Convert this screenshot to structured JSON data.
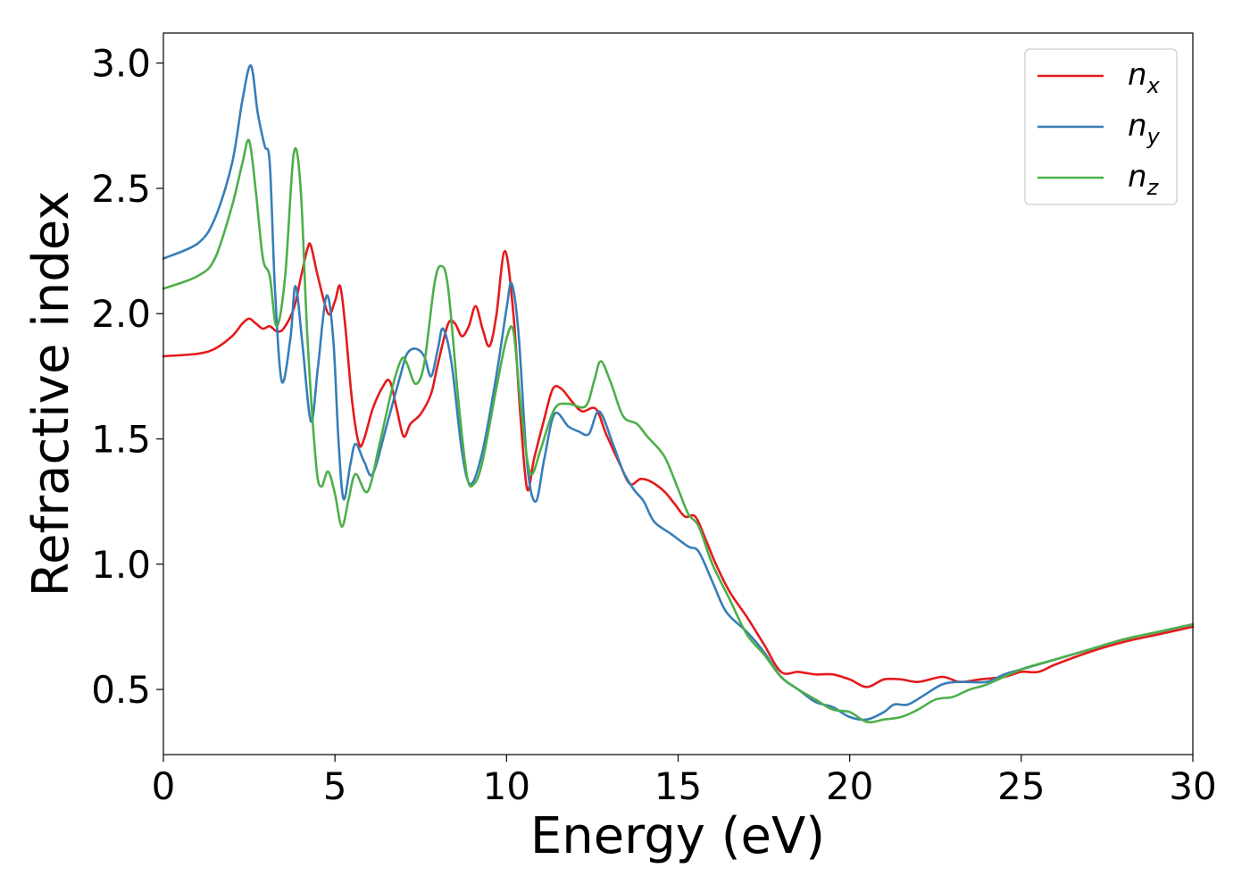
{
  "chart_data": {
    "type": "line",
    "title": "",
    "xlabel": "Energy (eV)",
    "ylabel": "Refractive index",
    "xlim": [
      0,
      30
    ],
    "ylim": [
      0.24,
      3.12
    ],
    "xticks": [
      "0",
      "5",
      "10",
      "15",
      "20",
      "25",
      "30"
    ],
    "yticks": [
      "0.5",
      "1.0",
      "1.5",
      "2.0",
      "2.5",
      "3.0"
    ],
    "grid": false,
    "legend_position": "top-right",
    "series": [
      {
        "name": "n_x",
        "legend_base": "n",
        "legend_sub": "x",
        "color": "#e41a1c",
        "points": [
          [
            0,
            1.83
          ],
          [
            1,
            1.84
          ],
          [
            1.5,
            1.86
          ],
          [
            2,
            1.91
          ],
          [
            2.3,
            1.96
          ],
          [
            2.5,
            1.98
          ],
          [
            2.7,
            1.96
          ],
          [
            2.9,
            1.94
          ],
          [
            3.1,
            1.95
          ],
          [
            3.3,
            1.93
          ],
          [
            3.5,
            1.94
          ],
          [
            3.8,
            2.02
          ],
          [
            4.0,
            2.14
          ],
          [
            4.2,
            2.26
          ],
          [
            4.3,
            2.27
          ],
          [
            4.5,
            2.15
          ],
          [
            4.8,
            2.0
          ],
          [
            5.0,
            2.05
          ],
          [
            5.15,
            2.11
          ],
          [
            5.3,
            1.95
          ],
          [
            5.5,
            1.65
          ],
          [
            5.7,
            1.48
          ],
          [
            5.85,
            1.5
          ],
          [
            6.1,
            1.62
          ],
          [
            6.4,
            1.71
          ],
          [
            6.6,
            1.73
          ],
          [
            6.8,
            1.62
          ],
          [
            7.0,
            1.51
          ],
          [
            7.2,
            1.56
          ],
          [
            7.5,
            1.6
          ],
          [
            7.8,
            1.68
          ],
          [
            8.0,
            1.8
          ],
          [
            8.3,
            1.96
          ],
          [
            8.5,
            1.96
          ],
          [
            8.7,
            1.91
          ],
          [
            8.9,
            1.95
          ],
          [
            9.1,
            2.03
          ],
          [
            9.3,
            1.94
          ],
          [
            9.5,
            1.87
          ],
          [
            9.7,
            1.99
          ],
          [
            9.95,
            2.25
          ],
          [
            10.2,
            2.0
          ],
          [
            10.4,
            1.6
          ],
          [
            10.6,
            1.3
          ],
          [
            10.8,
            1.42
          ],
          [
            11.1,
            1.58
          ],
          [
            11.35,
            1.7
          ],
          [
            11.6,
            1.7
          ],
          [
            11.9,
            1.65
          ],
          [
            12.2,
            1.61
          ],
          [
            12.6,
            1.62
          ],
          [
            12.9,
            1.52
          ],
          [
            13.3,
            1.4
          ],
          [
            13.6,
            1.32
          ],
          [
            13.9,
            1.34
          ],
          [
            14.2,
            1.33
          ],
          [
            14.6,
            1.29
          ],
          [
            14.9,
            1.24
          ],
          [
            15.2,
            1.19
          ],
          [
            15.5,
            1.19
          ],
          [
            15.8,
            1.1
          ],
          [
            16.1,
            1.0
          ],
          [
            16.5,
            0.89
          ],
          [
            17.0,
            0.79
          ],
          [
            17.5,
            0.68
          ],
          [
            18.0,
            0.57
          ],
          [
            18.5,
            0.57
          ],
          [
            19.0,
            0.56
          ],
          [
            19.5,
            0.56
          ],
          [
            20.0,
            0.54
          ],
          [
            20.5,
            0.51
          ],
          [
            21.0,
            0.54
          ],
          [
            21.5,
            0.54
          ],
          [
            22.0,
            0.53
          ],
          [
            22.7,
            0.55
          ],
          [
            23.2,
            0.53
          ],
          [
            23.8,
            0.54
          ],
          [
            24.5,
            0.55
          ],
          [
            25.0,
            0.57
          ],
          [
            25.5,
            0.57
          ],
          [
            26.0,
            0.6
          ],
          [
            27.0,
            0.65
          ],
          [
            28.0,
            0.69
          ],
          [
            29.0,
            0.72
          ],
          [
            30.0,
            0.75
          ]
        ]
      },
      {
        "name": "n_y",
        "legend_base": "n",
        "legend_sub": "y",
        "color": "#377eb8",
        "points": [
          [
            0,
            2.22
          ],
          [
            1,
            2.28
          ],
          [
            1.5,
            2.38
          ],
          [
            2.0,
            2.6
          ],
          [
            2.3,
            2.85
          ],
          [
            2.55,
            2.99
          ],
          [
            2.75,
            2.8
          ],
          [
            2.95,
            2.67
          ],
          [
            3.1,
            2.6
          ],
          [
            3.25,
            2.1
          ],
          [
            3.45,
            1.73
          ],
          [
            3.7,
            1.9
          ],
          [
            3.85,
            2.11
          ],
          [
            4.05,
            1.88
          ],
          [
            4.3,
            1.57
          ],
          [
            4.5,
            1.78
          ],
          [
            4.75,
            2.07
          ],
          [
            4.95,
            1.9
          ],
          [
            5.1,
            1.5
          ],
          [
            5.25,
            1.26
          ],
          [
            5.45,
            1.4
          ],
          [
            5.6,
            1.48
          ],
          [
            5.85,
            1.41
          ],
          [
            6.1,
            1.36
          ],
          [
            6.5,
            1.55
          ],
          [
            6.9,
            1.75
          ],
          [
            7.1,
            1.84
          ],
          [
            7.35,
            1.86
          ],
          [
            7.6,
            1.83
          ],
          [
            7.8,
            1.75
          ],
          [
            8.0,
            1.86
          ],
          [
            8.15,
            1.94
          ],
          [
            8.4,
            1.8
          ],
          [
            8.7,
            1.45
          ],
          [
            8.95,
            1.32
          ],
          [
            9.3,
            1.45
          ],
          [
            9.7,
            1.75
          ],
          [
            10.0,
            2.02
          ],
          [
            10.15,
            2.12
          ],
          [
            10.35,
            1.92
          ],
          [
            10.6,
            1.4
          ],
          [
            10.85,
            1.25
          ],
          [
            11.1,
            1.42
          ],
          [
            11.4,
            1.6
          ],
          [
            11.8,
            1.55
          ],
          [
            12.1,
            1.53
          ],
          [
            12.4,
            1.52
          ],
          [
            12.7,
            1.61
          ],
          [
            13.1,
            1.48
          ],
          [
            13.4,
            1.37
          ],
          [
            13.7,
            1.3
          ],
          [
            14.0,
            1.25
          ],
          [
            14.3,
            1.17
          ],
          [
            14.8,
            1.12
          ],
          [
            15.3,
            1.07
          ],
          [
            15.6,
            1.05
          ],
          [
            16.0,
            0.93
          ],
          [
            16.4,
            0.81
          ],
          [
            17.0,
            0.73
          ],
          [
            17.5,
            0.65
          ],
          [
            18.0,
            0.55
          ],
          [
            18.5,
            0.5
          ],
          [
            19.0,
            0.45
          ],
          [
            19.5,
            0.43
          ],
          [
            20.0,
            0.39
          ],
          [
            20.5,
            0.38
          ],
          [
            21.0,
            0.41
          ],
          [
            21.3,
            0.44
          ],
          [
            21.7,
            0.44
          ],
          [
            22.2,
            0.48
          ],
          [
            22.7,
            0.52
          ],
          [
            23.2,
            0.53
          ],
          [
            24.0,
            0.53
          ],
          [
            24.5,
            0.56
          ],
          [
            25.0,
            0.58
          ],
          [
            26.0,
            0.62
          ],
          [
            27.0,
            0.66
          ],
          [
            28.0,
            0.7
          ],
          [
            29.0,
            0.73
          ],
          [
            30.0,
            0.76
          ]
        ]
      },
      {
        "name": "n_z",
        "legend_base": "n",
        "legend_sub": "z",
        "color": "#4daf4a",
        "points": [
          [
            0,
            2.1
          ],
          [
            1,
            2.15
          ],
          [
            1.5,
            2.22
          ],
          [
            2.0,
            2.43
          ],
          [
            2.3,
            2.6
          ],
          [
            2.5,
            2.69
          ],
          [
            2.7,
            2.48
          ],
          [
            2.9,
            2.22
          ],
          [
            3.1,
            2.15
          ],
          [
            3.3,
            1.95
          ],
          [
            3.55,
            2.15
          ],
          [
            3.8,
            2.64
          ],
          [
            4.0,
            2.5
          ],
          [
            4.2,
            1.9
          ],
          [
            4.45,
            1.4
          ],
          [
            4.6,
            1.31
          ],
          [
            4.8,
            1.37
          ],
          [
            5.0,
            1.28
          ],
          [
            5.2,
            1.15
          ],
          [
            5.4,
            1.26
          ],
          [
            5.6,
            1.36
          ],
          [
            5.95,
            1.29
          ],
          [
            6.3,
            1.48
          ],
          [
            6.7,
            1.72
          ],
          [
            6.95,
            1.82
          ],
          [
            7.1,
            1.8
          ],
          [
            7.35,
            1.72
          ],
          [
            7.6,
            1.8
          ],
          [
            7.9,
            2.12
          ],
          [
            8.1,
            2.19
          ],
          [
            8.3,
            2.1
          ],
          [
            8.6,
            1.65
          ],
          [
            8.85,
            1.35
          ],
          [
            9.05,
            1.32
          ],
          [
            9.3,
            1.41
          ],
          [
            9.7,
            1.7
          ],
          [
            10.0,
            1.9
          ],
          [
            10.2,
            1.93
          ],
          [
            10.4,
            1.65
          ],
          [
            10.6,
            1.42
          ],
          [
            10.75,
            1.36
          ],
          [
            11.0,
            1.46
          ],
          [
            11.4,
            1.62
          ],
          [
            11.8,
            1.64
          ],
          [
            12.3,
            1.63
          ],
          [
            12.55,
            1.73
          ],
          [
            12.75,
            1.81
          ],
          [
            13.05,
            1.72
          ],
          [
            13.4,
            1.59
          ],
          [
            13.8,
            1.56
          ],
          [
            14.1,
            1.51
          ],
          [
            14.6,
            1.43
          ],
          [
            15.0,
            1.3
          ],
          [
            15.3,
            1.2
          ],
          [
            15.6,
            1.15
          ],
          [
            16.0,
            1.0
          ],
          [
            16.5,
            0.86
          ],
          [
            17.0,
            0.72
          ],
          [
            17.5,
            0.64
          ],
          [
            18.0,
            0.55
          ],
          [
            18.5,
            0.5
          ],
          [
            19.0,
            0.46
          ],
          [
            19.5,
            0.42
          ],
          [
            20.0,
            0.41
          ],
          [
            20.5,
            0.37
          ],
          [
            21.0,
            0.38
          ],
          [
            21.5,
            0.39
          ],
          [
            22.0,
            0.42
          ],
          [
            22.5,
            0.46
          ],
          [
            23.0,
            0.47
          ],
          [
            23.5,
            0.5
          ],
          [
            24.0,
            0.52
          ],
          [
            25.0,
            0.58
          ],
          [
            26.0,
            0.62
          ],
          [
            27.0,
            0.66
          ],
          [
            28.0,
            0.7
          ],
          [
            29.0,
            0.73
          ],
          [
            30.0,
            0.76
          ]
        ]
      }
    ]
  }
}
